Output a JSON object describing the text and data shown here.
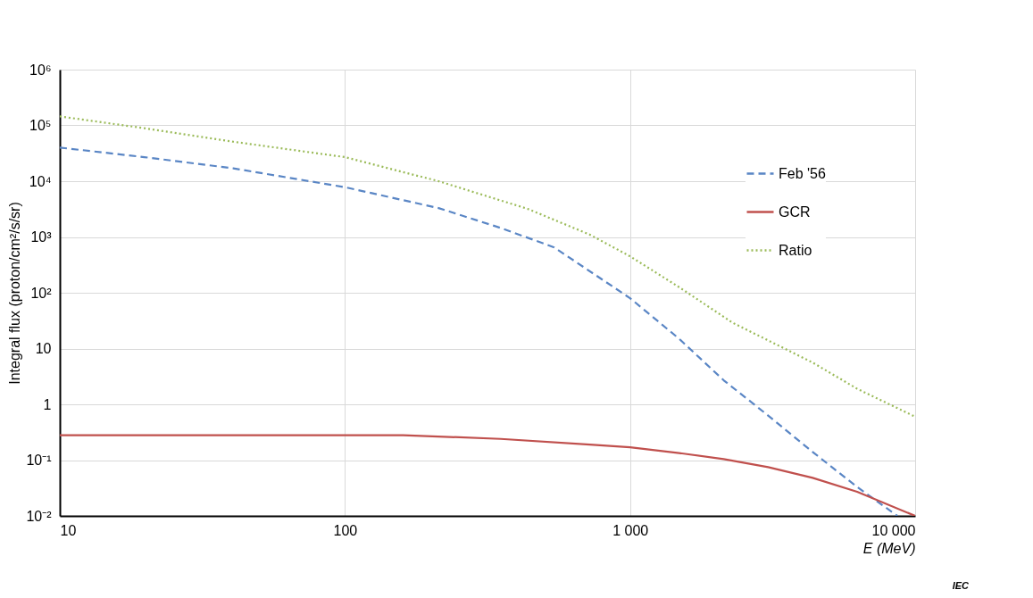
{
  "chart_data": {
    "type": "line",
    "xlabel": "E  (MeV)",
    "ylabel": "Integral flux (proton/cm²/s/sr)",
    "log": "xy",
    "grid": true,
    "legend": "top right",
    "annotations": [
      "IEC"
    ],
    "xlim": [
      10,
      10000
    ],
    "ylim": [
      0.01,
      1000000
    ],
    "xticks": [
      10,
      100,
      {
        "value": 1000,
        "label": "1 000"
      },
      {
        "value": 10000,
        "label": "10 000"
      }
    ],
    "yticks": [
      {
        "value": 0.01,
        "label": "10⁻²"
      },
      {
        "value": 0.1,
        "label": "10⁻¹"
      },
      1,
      10,
      {
        "value": 100,
        "label": "10²"
      },
      {
        "value": 1000,
        "label": "10³"
      },
      {
        "value": 10000,
        "label": "10⁴"
      },
      {
        "value": 100000,
        "label": "10⁵"
      },
      {
        "value": 1000000,
        "label": "10⁶"
      }
    ],
    "series": [
      {
        "name": "Feb '56",
        "color": "#5a86c5",
        "line_style": "dashed",
        "x": [
          10,
          19.8,
          40.6,
          100,
          213,
          352,
          542,
          1000,
          1486,
          2130,
          3050,
          4370,
          6260,
          8660
        ],
        "values": [
          40000,
          27000,
          17000,
          7800,
          3300,
          1450,
          650,
          80,
          15,
          2.7,
          0.63,
          0.14,
          0.033,
          0.01
        ]
      },
      {
        "name": "GCR",
        "color": "#c0504d",
        "line_style": "solid",
        "x": [
          10,
          160,
          352,
          723,
          1000,
          1486,
          2130,
          3050,
          4370,
          6260,
          10000
        ],
        "values": [
          0.28,
          0.28,
          0.24,
          0.19,
          0.17,
          0.134,
          0.104,
          0.075,
          0.048,
          0.027,
          0.01
        ]
      },
      {
        "name": "Ratio",
        "color": "#9bbb59",
        "line_style": "dotted",
        "x": [
          10,
          19.8,
          40.6,
          100,
          213,
          437,
          723,
          1000,
          1486,
          2290,
          3050,
          4370,
          6260,
          10000
        ],
        "values": [
          145000,
          89000,
          51000,
          27000,
          10000,
          3200,
          1100,
          450,
          126,
          29,
          14,
          5.6,
          1.9,
          0.6
        ]
      }
    ]
  }
}
